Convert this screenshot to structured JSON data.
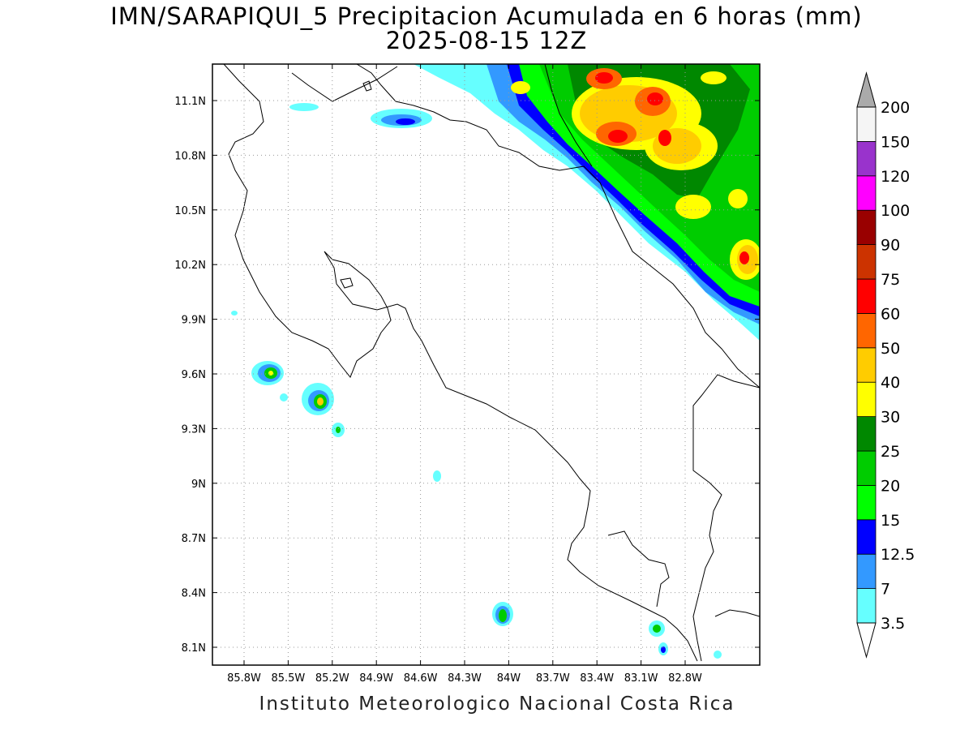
{
  "title": {
    "line1": "IMN/SARAPIQUI_5 Precipitacion Acumulada en 6 horas (mm)",
    "line2": "2025-08-15 12Z"
  },
  "footer": "Instituto Meteorologico Nacional Costa Rica",
  "map": {
    "lat_labels": [
      "11.1N",
      "10.8N",
      "10.5N",
      "10.2N",
      "9.9N",
      "9.6N",
      "9.3N",
      "9N",
      "8.7N",
      "8.4N",
      "8.1N"
    ],
    "lon_labels": [
      "85.8W",
      "85.5W",
      "85.2W",
      "84.9W",
      "84.6W",
      "84.3W",
      "84W",
      "83.7W",
      "83.4W",
      "83.1W",
      "82.8W"
    ]
  },
  "colorbar": {
    "levels": [
      "3.5",
      "7",
      "12.5",
      "15",
      "20",
      "25",
      "30",
      "40",
      "50",
      "60",
      "75",
      "90",
      "100",
      "120",
      "150",
      "200"
    ],
    "colors": [
      "#66ffff",
      "#3399ff",
      "#0000ff",
      "#00ff00",
      "#00cc00",
      "#008800",
      "#ffff00",
      "#ffcc00",
      "#ff6600",
      "#ff0000",
      "#cc3300",
      "#990000",
      "#ff00ff",
      "#9933cc",
      "#f5f5f5"
    ],
    "top_arrow_color": "#aaaaaa",
    "bottom_arrow_color": "#ffffff"
  }
}
